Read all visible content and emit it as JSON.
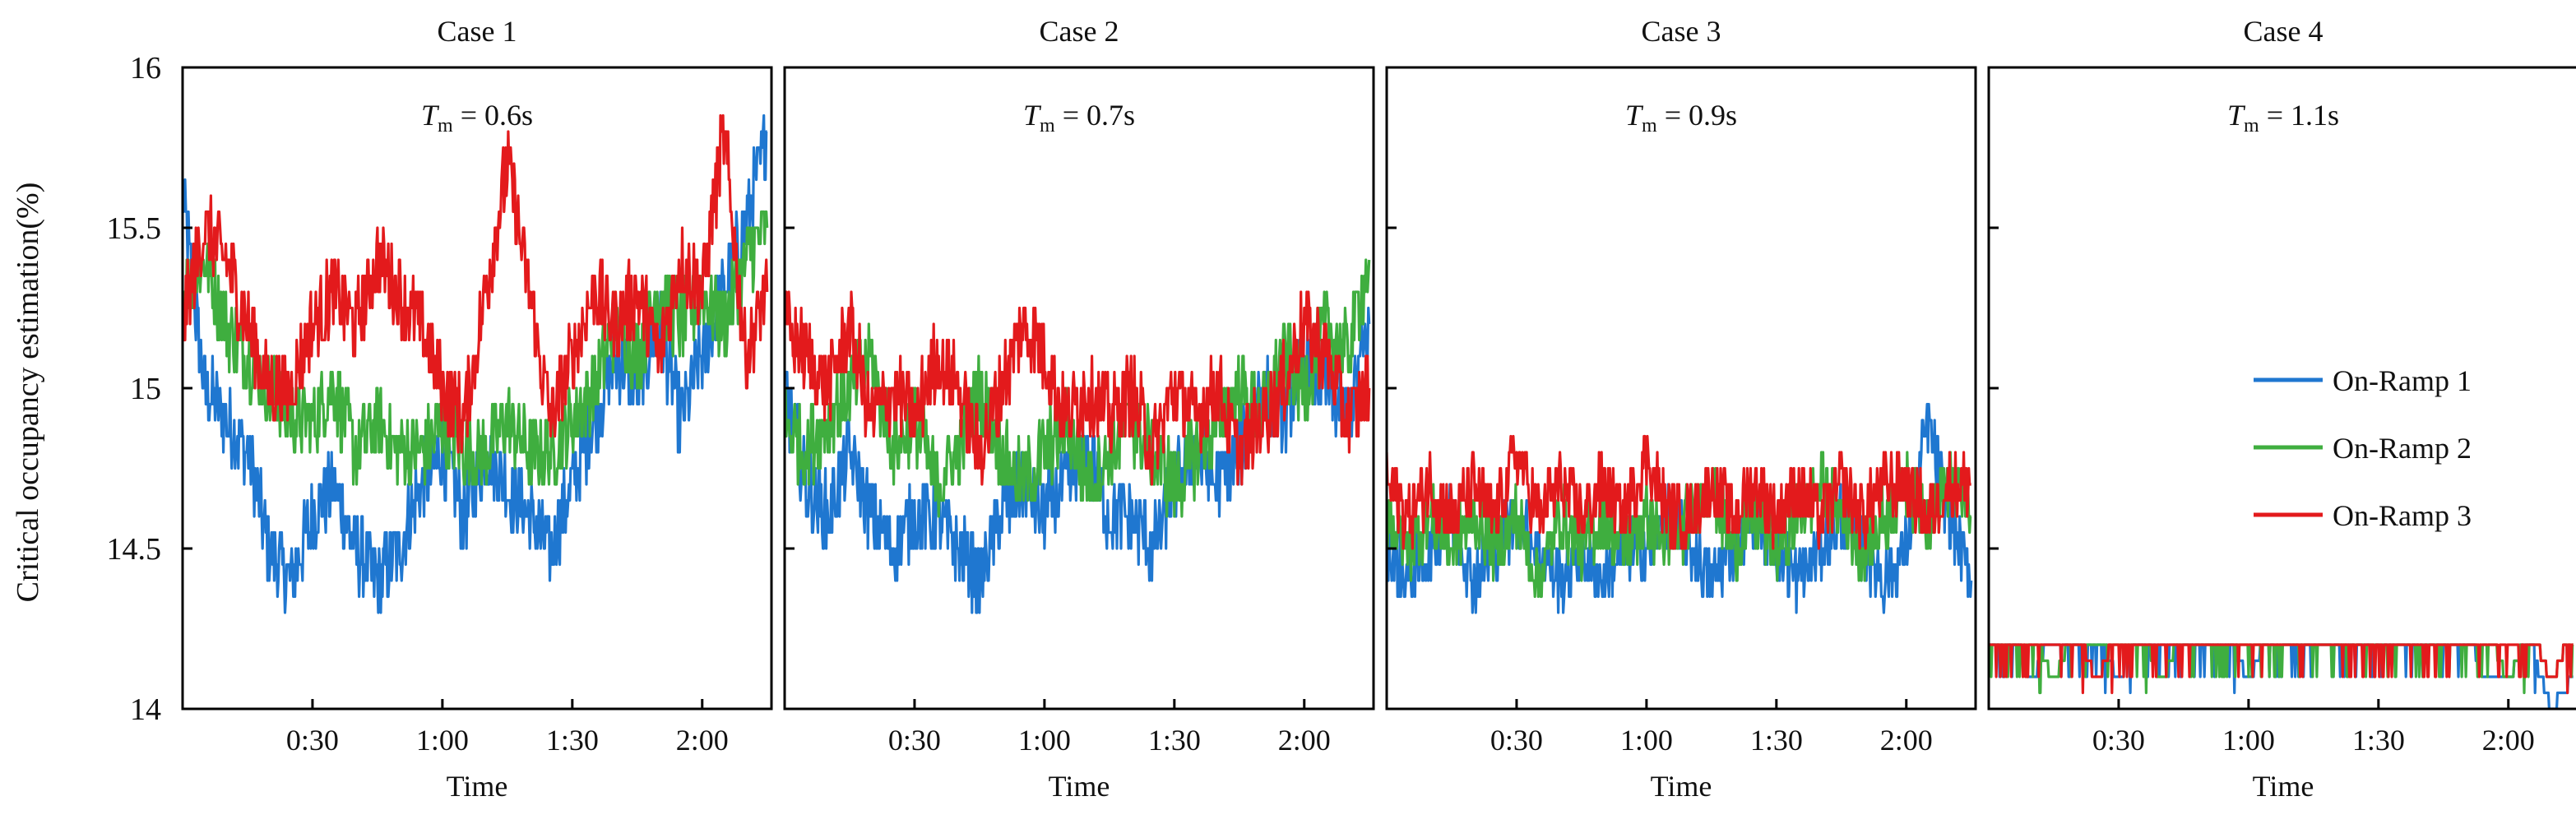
{
  "chart_data": {
    "type": "line",
    "ylabel": "Critical occupancy estimation(%)",
    "ylim": [
      14,
      16
    ],
    "yticks": [
      14,
      14.5,
      15,
      15.5,
      16
    ],
    "ytick_labels": [
      "14",
      "14.5",
      "15",
      "15.5",
      "16"
    ],
    "xlabel": "Time",
    "xlim_seconds": [
      0,
      136
    ],
    "xticks_seconds": [
      30,
      60,
      90,
      120
    ],
    "xtick_labels": [
      "0:30",
      "1:00",
      "1:30",
      "2:00"
    ],
    "series_names": [
      "On-Ramp 1",
      "On-Ramp 2",
      "On-Ramp 3"
    ],
    "series_colors": [
      "#1f77d0",
      "#3fae3f",
      "#e31a1c"
    ],
    "panels": [
      {
        "title": "Case 1",
        "annotation_symbol": "T",
        "annotation_subscript": "m",
        "annotation_value": " = 0.6s",
        "series": [
          {
            "name": "On-Ramp 1",
            "x": [
              0,
              5,
              10,
              15,
              20,
              25,
              30,
              35,
              40,
              45,
              50,
              55,
              60,
              65,
              70,
              75,
              80,
              85,
              90,
              95,
              100,
              105,
              110,
              115,
              120,
              125,
              130,
              135
            ],
            "values": [
              15.6,
              15.0,
              14.9,
              14.8,
              14.5,
              14.4,
              14.6,
              14.7,
              14.5,
              14.4,
              14.5,
              14.7,
              14.8,
              14.6,
              14.8,
              14.7,
              14.6,
              14.5,
              14.7,
              14.9,
              15.1,
              15.0,
              15.2,
              14.9,
              15.1,
              15.3,
              15.5,
              15.8
            ]
          },
          {
            "name": "On-Ramp 2",
            "x": [
              0,
              5,
              10,
              15,
              20,
              25,
              30,
              35,
              40,
              45,
              50,
              55,
              60,
              65,
              70,
              75,
              80,
              85,
              90,
              95,
              100,
              105,
              110,
              115,
              120,
              125,
              130,
              135
            ],
            "values": [
              15.3,
              15.4,
              15.2,
              15.1,
              15.0,
              14.9,
              14.9,
              15.0,
              14.8,
              14.9,
              14.8,
              14.8,
              14.9,
              14.8,
              14.8,
              14.9,
              14.8,
              14.8,
              14.9,
              15.0,
              15.2,
              15.1,
              15.3,
              15.2,
              15.3,
              15.2,
              15.4,
              15.5
            ]
          },
          {
            "name": "On-Ramp 3",
            "x": [
              0,
              5,
              10,
              15,
              20,
              25,
              30,
              35,
              40,
              45,
              50,
              55,
              60,
              65,
              70,
              75,
              80,
              85,
              90,
              95,
              100,
              105,
              110,
              115,
              120,
              125,
              130,
              135
            ],
            "values": [
              15.2,
              15.5,
              15.4,
              15.2,
              15.0,
              15.0,
              15.2,
              15.3,
              15.2,
              15.4,
              15.3,
              15.2,
              15.0,
              14.9,
              15.3,
              15.7,
              15.3,
              14.9,
              15.1,
              15.3,
              15.2,
              15.3,
              15.1,
              15.4,
              15.3,
              15.8,
              15.1,
              15.3
            ]
          }
        ]
      },
      {
        "title": "Case 2",
        "annotation_symbol": "T",
        "annotation_subscript": "m",
        "annotation_value": " = 0.7s",
        "series": [
          {
            "name": "On-Ramp 1",
            "x": [
              0,
              5,
              10,
              15,
              20,
              25,
              30,
              35,
              40,
              45,
              50,
              55,
              60,
              65,
              70,
              75,
              80,
              85,
              90,
              95,
              100,
              105,
              110,
              115,
              120,
              125,
              130,
              135
            ],
            "values": [
              15.0,
              14.7,
              14.6,
              14.8,
              14.6,
              14.5,
              14.6,
              14.6,
              14.5,
              14.4,
              14.6,
              14.7,
              14.6,
              14.7,
              14.8,
              14.6,
              14.6,
              14.5,
              14.7,
              14.8,
              14.7,
              14.8,
              15.0,
              14.9,
              15.1,
              15.0,
              14.9,
              15.2
            ]
          },
          {
            "name": "On-Ramp 2",
            "x": [
              0,
              5,
              10,
              15,
              20,
              25,
              30,
              35,
              40,
              45,
              50,
              55,
              60,
              65,
              70,
              75,
              80,
              85,
              90,
              95,
              100,
              105,
              110,
              115,
              120,
              125,
              130,
              135
            ],
            "values": [
              14.9,
              14.8,
              14.9,
              15.0,
              15.1,
              14.8,
              14.9,
              14.7,
              14.8,
              15.0,
              14.8,
              14.7,
              14.8,
              14.9,
              14.7,
              14.8,
              14.9,
              14.8,
              14.7,
              14.8,
              14.9,
              15.0,
              14.9,
              15.1,
              15.0,
              15.2,
              15.1,
              15.4
            ]
          },
          {
            "name": "On-Ramp 3",
            "x": [
              0,
              5,
              10,
              15,
              20,
              25,
              30,
              35,
              40,
              45,
              50,
              55,
              60,
              65,
              70,
              75,
              80,
              85,
              90,
              95,
              100,
              105,
              110,
              115,
              120,
              125,
              130,
              135
            ],
            "values": [
              15.2,
              15.1,
              15.0,
              15.2,
              14.9,
              15.0,
              14.9,
              15.1,
              15.0,
              14.8,
              15.0,
              15.2,
              15.1,
              14.9,
              15.0,
              14.9,
              15.0,
              14.8,
              15.0,
              14.9,
              15.0,
              14.8,
              14.9,
              15.0,
              15.2,
              15.1,
              14.9,
              15.0
            ]
          }
        ]
      },
      {
        "title": "Case 3",
        "annotation_symbol": "T",
        "annotation_subscript": "m",
        "annotation_value": " = 0.9s",
        "series": [
          {
            "name": "On-Ramp 1",
            "x": [
              0,
              5,
              10,
              15,
              20,
              25,
              30,
              35,
              40,
              45,
              50,
              55,
              60,
              65,
              70,
              75,
              80,
              85,
              90,
              95,
              100,
              105,
              110,
              115,
              120,
              125,
              130,
              135
            ],
            "values": [
              14.5,
              14.4,
              14.5,
              14.6,
              14.4,
              14.5,
              14.6,
              14.5,
              14.4,
              14.5,
              14.4,
              14.5,
              14.5,
              14.6,
              14.5,
              14.4,
              14.5,
              14.6,
              14.5,
              14.4,
              14.5,
              14.6,
              14.5,
              14.4,
              14.5,
              14.9,
              14.6,
              14.4
            ]
          },
          {
            "name": "On-Ramp 2",
            "x": [
              0,
              5,
              10,
              15,
              20,
              25,
              30,
              35,
              40,
              45,
              50,
              55,
              60,
              65,
              70,
              75,
              80,
              85,
              90,
              95,
              100,
              105,
              110,
              115,
              120,
              125,
              130,
              135
            ],
            "values": [
              14.6,
              14.5,
              14.6,
              14.5,
              14.6,
              14.5,
              14.6,
              14.4,
              14.6,
              14.5,
              14.6,
              14.5,
              14.6,
              14.5,
              14.6,
              14.7,
              14.5,
              14.6,
              14.5,
              14.6,
              14.7,
              14.6,
              14.5,
              14.6,
              14.7,
              14.6,
              14.7,
              14.6
            ]
          },
          {
            "name": "On-Ramp 3",
            "x": [
              0,
              5,
              10,
              15,
              20,
              25,
              30,
              35,
              40,
              45,
              50,
              55,
              60,
              65,
              70,
              75,
              80,
              85,
              90,
              95,
              100,
              105,
              110,
              115,
              120,
              125,
              130,
              135
            ],
            "values": [
              14.7,
              14.6,
              14.7,
              14.6,
              14.7,
              14.6,
              14.8,
              14.6,
              14.7,
              14.6,
              14.7,
              14.6,
              14.8,
              14.6,
              14.6,
              14.7,
              14.6,
              14.7,
              14.6,
              14.7,
              14.6,
              14.7,
              14.6,
              14.7,
              14.7,
              14.6,
              14.7,
              14.7
            ]
          }
        ]
      },
      {
        "title": "Case 4",
        "annotation_symbol": "T",
        "annotation_subscript": "m",
        "annotation_value": " = 1.1s",
        "series": [
          {
            "name": "On-Ramp 1",
            "x": [
              0,
              5,
              10,
              15,
              20,
              25,
              30,
              35,
              40,
              45,
              50,
              55,
              60,
              65,
              70,
              75,
              80,
              85,
              90,
              95,
              100,
              105,
              110,
              115,
              120,
              125,
              130,
              135
            ],
            "values": [
              14.2,
              14.2,
              14.1,
              14.2,
              14.2,
              14.2,
              14.1,
              14.2,
              14.2,
              14.2,
              14.2,
              14.2,
              14.1,
              14.2,
              14.2,
              14.2,
              14.2,
              14.2,
              14.2,
              14.2,
              14.2,
              14.2,
              14.2,
              14.1,
              14.1,
              14.2,
              14.0,
              14.1
            ]
          },
          {
            "name": "On-Ramp 2",
            "x": [
              0,
              5,
              10,
              15,
              20,
              25,
              30,
              35,
              40,
              45,
              50,
              55,
              60,
              65,
              70,
              75,
              80,
              85,
              90,
              95,
              100,
              105,
              110,
              115,
              120,
              125,
              130,
              135
            ],
            "values": [
              14.2,
              14.2,
              14.2,
              14.1,
              14.2,
              14.2,
              14.2,
              14.2,
              14.1,
              14.2,
              14.2,
              14.2,
              14.2,
              14.2,
              14.2,
              14.2,
              14.2,
              14.2,
              14.2,
              14.2,
              14.2,
              14.2,
              14.2,
              14.2,
              14.1,
              14.2,
              14.1,
              14.2
            ]
          },
          {
            "name": "On-Ramp 3",
            "x": [
              0,
              5,
              10,
              15,
              20,
              25,
              30,
              35,
              40,
              45,
              50,
              55,
              60,
              65,
              70,
              75,
              80,
              85,
              90,
              95,
              100,
              105,
              110,
              115,
              120,
              125,
              130,
              135
            ],
            "values": [
              14.2,
              14.2,
              14.2,
              14.2,
              14.2,
              14.1,
              14.2,
              14.2,
              14.2,
              14.2,
              14.2,
              14.2,
              14.2,
              14.2,
              14.2,
              14.2,
              14.2,
              14.2,
              14.2,
              14.2,
              14.2,
              14.2,
              14.2,
              14.2,
              14.2,
              14.2,
              14.1,
              14.2
            ]
          }
        ]
      }
    ]
  }
}
